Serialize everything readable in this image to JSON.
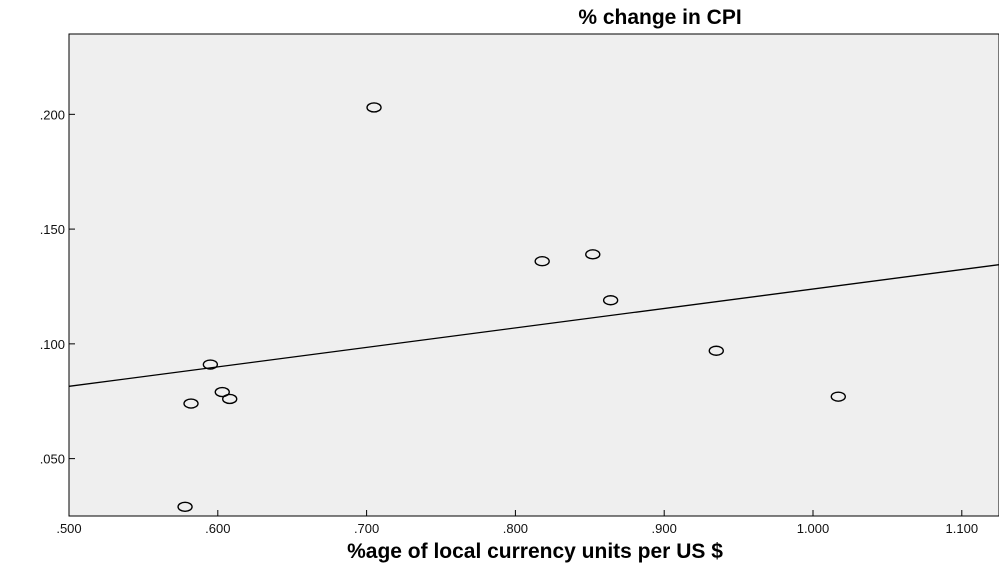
{
  "chart_data": {
    "type": "scatter",
    "title": "% change in CPI",
    "xlabel": "%age of local currency units per US $",
    "ylabel": "",
    "xlim": [
      0.5,
      1.125
    ],
    "ylim": [
      0.025,
      0.235
    ],
    "x_ticks": [
      ".500",
      ".600",
      ".700",
      ".800",
      ".900",
      "1.000",
      "1.100"
    ],
    "y_ticks": [
      ".050",
      ".100",
      ".150",
      ".200"
    ],
    "grid": false,
    "legend": "none",
    "background_color": "#efefef",
    "marker_color": "#000000",
    "series": [
      {
        "points": [
          {
            "x": 0.705,
            "y": 0.203
          },
          {
            "x": 0.818,
            "y": 0.136
          },
          {
            "x": 0.852,
            "y": 0.139
          },
          {
            "x": 0.864,
            "y": 0.119
          },
          {
            "x": 0.935,
            "y": 0.097
          },
          {
            "x": 1.017,
            "y": 0.077
          },
          {
            "x": 0.595,
            "y": 0.091
          },
          {
            "x": 0.603,
            "y": 0.079
          },
          {
            "x": 0.608,
            "y": 0.076
          },
          {
            "x": 0.582,
            "y": 0.074
          },
          {
            "x": 0.578,
            "y": 0.029
          }
        ]
      }
    ],
    "fit_line": {
      "type": "linear",
      "x": [
        0.5,
        1.125
      ],
      "y": [
        0.0815,
        0.1345
      ]
    }
  }
}
